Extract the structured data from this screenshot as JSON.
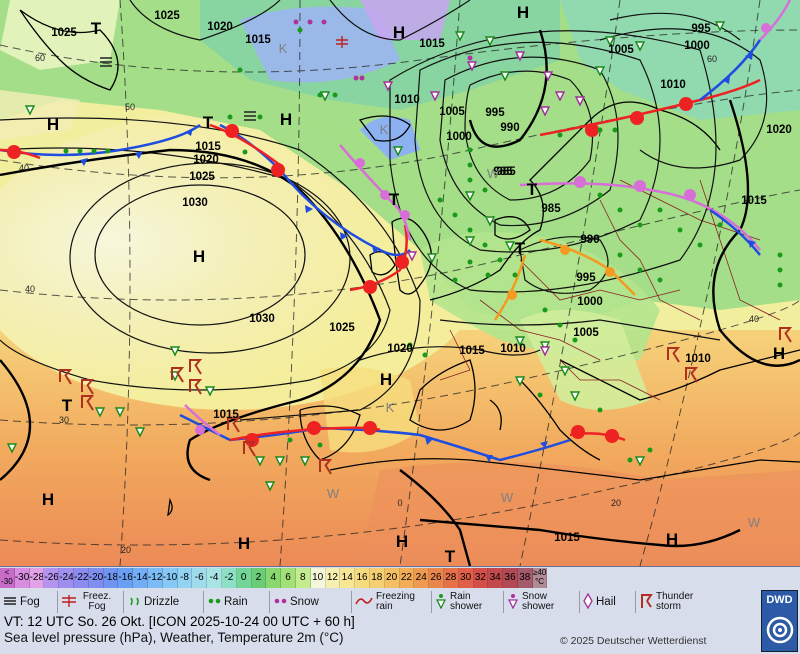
{
  "map": {
    "isobar_labels": [
      "1025",
      "1025",
      "1020",
      "1015",
      "1015",
      "1010",
      "1005",
      "995",
      "990",
      "985",
      "995",
      "1000",
      "1005",
      "1010",
      "1020",
      "1000",
      "1015",
      "1020",
      "1025",
      "1030",
      "1030",
      "1025",
      "1020",
      "1015",
      "1010",
      "1005",
      "1000",
      "995",
      "990",
      "985",
      "985",
      "1015",
      "1010",
      "1015",
      "1015"
    ],
    "pressure_centers": [
      "H",
      "H",
      "H",
      "H",
      "H",
      "H",
      "H",
      "H",
      "H",
      "H",
      "H",
      "T",
      "T",
      "T",
      "T",
      "T",
      "T",
      "T"
    ],
    "temp_notes": [
      "K",
      "K",
      "K",
      "W",
      "W",
      "W",
      "W"
    ],
    "lat_labels": [
      "60",
      "50",
      "40",
      "40",
      "30",
      "20",
      "60",
      "40",
      "20",
      "0"
    ]
  },
  "legend": {
    "scale_labels": [
      "< -30",
      "-30",
      "-28",
      "-26",
      "-24",
      "-22",
      "-20",
      "-18",
      "-16",
      "-14",
      "-12",
      "-10",
      "-8",
      "-6",
      "-4",
      "-2",
      "0",
      "2",
      "4",
      "6",
      "8",
      "10",
      "12",
      "14",
      "16",
      "18",
      "20",
      "22",
      "24",
      "26",
      "28",
      "30",
      "32",
      "34",
      "36",
      "38",
      "≥40 °C"
    ],
    "scale_colors": [
      "#c86cc8",
      "#d98de0",
      "#e2a2ea",
      "#b393f0",
      "#9d8ef0",
      "#8c8cf0",
      "#7e8ff0",
      "#6f95f2",
      "#6aa0f4",
      "#71aef6",
      "#7bbcf6",
      "#86c9f6",
      "#92d3f1",
      "#9edceb",
      "#a8e4e4",
      "#8ee0c4",
      "#71d695",
      "#6acd76",
      "#86d86f",
      "#a3e178",
      "#c4eb8f",
      "#f4f7d9",
      "#f7efb0",
      "#f7e696",
      "#f6db7e",
      "#f5cf71",
      "#f4be62",
      "#f2ad56",
      "#ee9a50",
      "#ea864c",
      "#e67149",
      "#e15e48",
      "#d44e4a",
      "#c24a4c",
      "#b24a55",
      "#a55a6c",
      "#b08a96"
    ],
    "symbols": [
      {
        "icon": "fog-icon",
        "label": "Fog"
      },
      {
        "icon": "freezing-fog-icon",
        "label": "Freez. Fog"
      },
      {
        "icon": "drizzle-icon",
        "label": "Drizzle"
      },
      {
        "icon": "rain-icon",
        "label": "Rain"
      },
      {
        "icon": "snow-icon",
        "label": "Snow"
      },
      {
        "icon": "freezing-rain-icon",
        "label": "Freezing rain"
      },
      {
        "icon": "rain-shower-icon",
        "label": "Rain shower"
      },
      {
        "icon": "snow-shower-icon",
        "label": "Snow shower"
      },
      {
        "icon": "hail-icon",
        "label": "Hail"
      },
      {
        "icon": "thunderstorm-icon",
        "label": "Thunder storm"
      }
    ],
    "valid_time": "VT: 12 UTC So.  26 Okt. [ICON 2025-10-24  00 UTC + 60 h]",
    "subtitle": "Sea level pressure (hPa), Weather, Temperature 2m (°C)",
    "copyright": "© 2025 Deutscher Wetterdienst",
    "logo_text": "DWD"
  }
}
